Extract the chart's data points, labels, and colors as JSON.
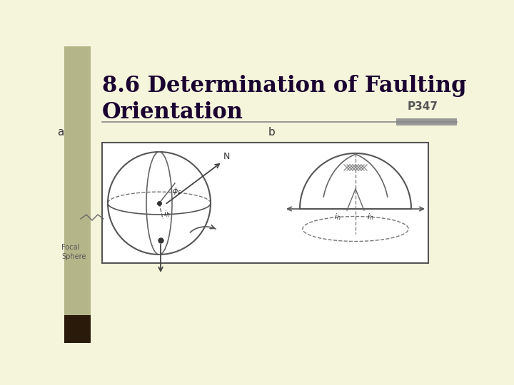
{
  "title_line1": "8.6 Determination of Faulting",
  "title_line2": "Orientation",
  "page_ref": "P347",
  "bg_color": "#f5f5dc",
  "left_bar_color": "#b5b58a",
  "title_color": "#1a0030",
  "page_ref_color": "#555555",
  "horizontal_line_color": "#888888",
  "accent_bar_color": "#999999",
  "box_bg": "#ffffff",
  "box_border": "#555555"
}
